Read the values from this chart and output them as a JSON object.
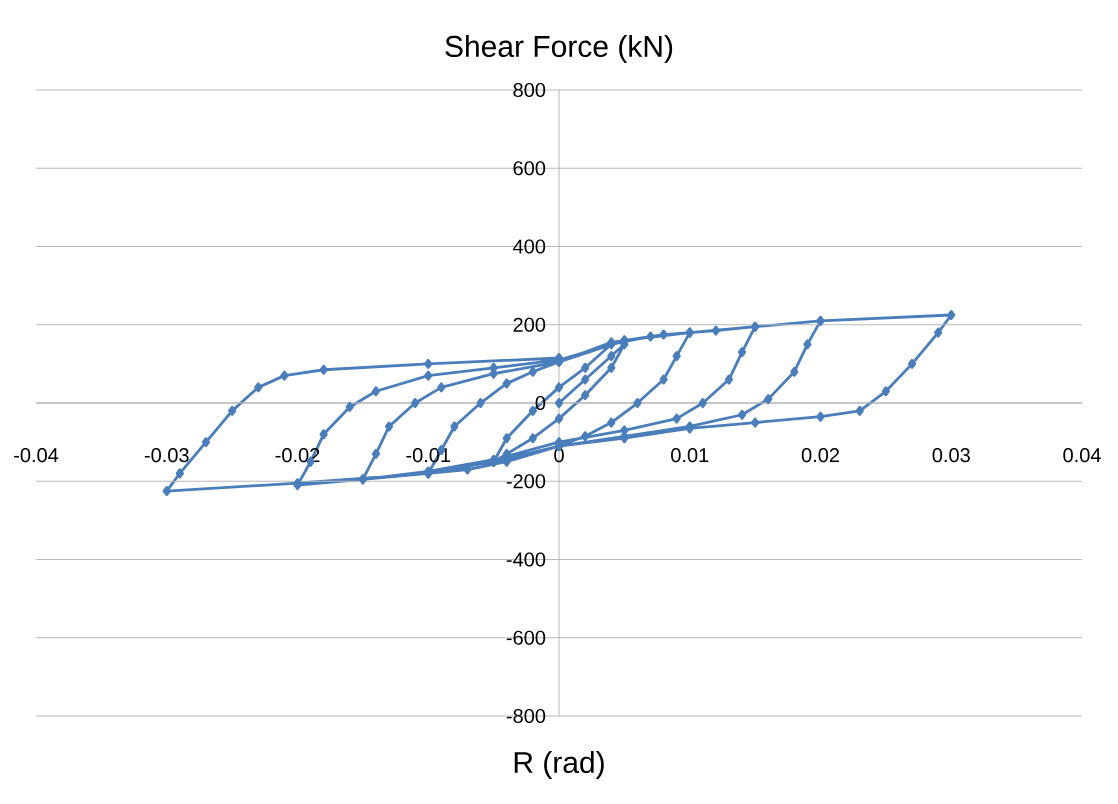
{
  "chart_data": {
    "type": "line",
    "xlabel": "R (rad)",
    "ylabel": "Shear Force (kN)",
    "color": "#4a7ebb",
    "marker": "diamond",
    "line_style": "solid",
    "grid": "y",
    "xlim": [
      -0.04,
      0.04
    ],
    "ylim": [
      -800,
      800
    ],
    "xticks": [
      -0.04,
      -0.03,
      -0.02,
      -0.01,
      0,
      0.01,
      0.02,
      0.03,
      0.04
    ],
    "yticks": [
      -800,
      -600,
      -400,
      -200,
      0,
      200,
      400,
      600,
      800
    ],
    "x": [
      0,
      0.002,
      0.004,
      0.005,
      0.004,
      0.002,
      0,
      -0.002,
      -0.004,
      -0.005,
      -0.004,
      -0.002,
      0,
      0.002,
      0.004,
      0.007,
      0.01,
      0.009,
      0.008,
      0.006,
      0.004,
      0.002,
      0,
      -0.004,
      -0.007,
      -0.01,
      -0.009,
      -0.008,
      -0.006,
      -0.004,
      -0.002,
      0,
      0.004,
      0.008,
      0.012,
      0.015,
      0.014,
      0.013,
      0.011,
      0.009,
      0.005,
      0,
      -0.005,
      -0.01,
      -0.015,
      -0.014,
      -0.013,
      -0.011,
      -0.009,
      -0.005,
      0,
      0.005,
      0.01,
      0.015,
      0.02,
      0.019,
      0.018,
      0.016,
      0.014,
      0.01,
      0.005,
      0,
      -0.005,
      -0.01,
      -0.015,
      -0.02,
      -0.019,
      -0.018,
      -0.016,
      -0.014,
      -0.01,
      -0.005,
      0,
      0.005,
      0.01,
      0.02,
      0.03,
      0.029,
      0.027,
      0.025,
      0.023,
      0.02,
      0.015,
      0.01,
      0.005,
      0,
      -0.005,
      -0.01,
      -0.02,
      -0.03,
      -0.029,
      -0.027,
      -0.025,
      -0.023,
      -0.021,
      -0.018,
      -0.01,
      0
    ],
    "values": [
      0,
      60,
      120,
      150,
      90,
      20,
      -40,
      -90,
      -130,
      -150,
      -90,
      -20,
      40,
      90,
      150,
      170,
      180,
      120,
      60,
      0,
      -50,
      -85,
      -110,
      -150,
      -170,
      -180,
      -120,
      -60,
      0,
      50,
      80,
      105,
      155,
      175,
      185,
      195,
      130,
      60,
      0,
      -40,
      -70,
      -100,
      -145,
      -175,
      -195,
      -130,
      -60,
      0,
      40,
      75,
      105,
      160,
      180,
      195,
      210,
      150,
      80,
      10,
      -30,
      -60,
      -85,
      -110,
      -150,
      -180,
      -195,
      -210,
      -150,
      -80,
      -10,
      30,
      70,
      90,
      110,
      160,
      180,
      210,
      225,
      180,
      100,
      30,
      -20,
      -35,
      -50,
      -65,
      -90,
      -110,
      -150,
      -180,
      -205,
      -225,
      -180,
      -100,
      -20,
      40,
      70,
      85,
      100,
      115
    ]
  }
}
